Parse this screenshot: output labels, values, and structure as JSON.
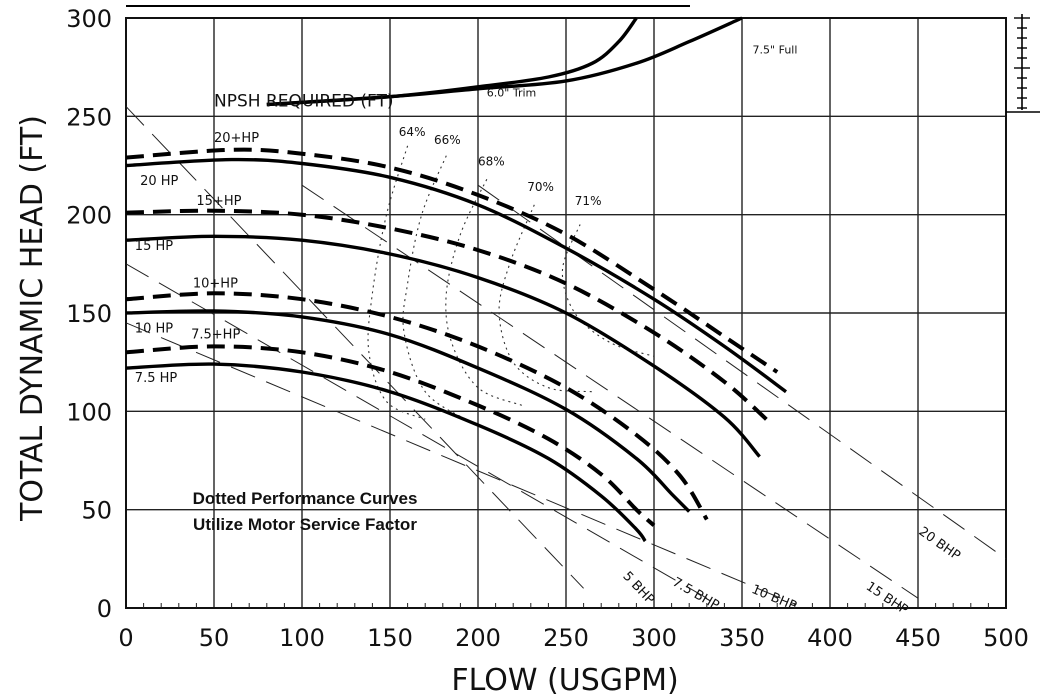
{
  "chart_data": {
    "type": "line",
    "title": "",
    "xlabel": "FLOW (USGPM)",
    "ylabel": "TOTAL DYNAMIC HEAD (FT)",
    "xlim": [
      0,
      500
    ],
    "ylim": [
      0,
      300
    ],
    "x_ticks": [
      0,
      50,
      100,
      150,
      200,
      250,
      300,
      350,
      400,
      450,
      500
    ],
    "y_ticks": [
      0,
      50,
      100,
      150,
      200,
      250,
      300
    ],
    "grid": true,
    "note_lines": [
      "Dotted Performance Curves",
      "Utilize Motor Service Factor"
    ],
    "series": [
      {
        "name": "20+HP",
        "style": "dashed",
        "label_at": [
          50,
          237
        ],
        "points": [
          [
            0,
            229
          ],
          [
            60,
            233
          ],
          [
            100,
            231
          ],
          [
            150,
            224
          ],
          [
            200,
            210
          ],
          [
            250,
            190
          ],
          [
            300,
            162
          ],
          [
            340,
            138
          ],
          [
            370,
            120
          ]
        ]
      },
      {
        "name": "20 HP",
        "style": "solid",
        "label_at": [
          8,
          215
        ],
        "points": [
          [
            0,
            225
          ],
          [
            60,
            228
          ],
          [
            100,
            226
          ],
          [
            150,
            219
          ],
          [
            200,
            205
          ],
          [
            250,
            183
          ],
          [
            300,
            157
          ],
          [
            340,
            133
          ],
          [
            375,
            110
          ]
        ]
      },
      {
        "name": "15+HP",
        "style": "dashed",
        "label_at": [
          40,
          205
        ],
        "points": [
          [
            0,
            201
          ],
          [
            50,
            202
          ],
          [
            100,
            200
          ],
          [
            150,
            193
          ],
          [
            200,
            182
          ],
          [
            250,
            165
          ],
          [
            300,
            140
          ],
          [
            340,
            115
          ],
          [
            365,
            95
          ]
        ]
      },
      {
        "name": "15 HP",
        "style": "solid",
        "label_at": [
          5,
          182
        ],
        "points": [
          [
            0,
            187
          ],
          [
            50,
            189
          ],
          [
            100,
            187
          ],
          [
            150,
            180
          ],
          [
            200,
            168
          ],
          [
            250,
            150
          ],
          [
            300,
            123
          ],
          [
            340,
            97
          ],
          [
            360,
            77
          ]
        ]
      },
      {
        "name": "10+HP",
        "style": "dashed",
        "label_at": [
          38,
          163
        ],
        "points": [
          [
            0,
            157
          ],
          [
            50,
            160
          ],
          [
            100,
            157
          ],
          [
            150,
            148
          ],
          [
            200,
            133
          ],
          [
            250,
            112
          ],
          [
            290,
            88
          ],
          [
            315,
            67
          ],
          [
            330,
            45
          ]
        ]
      },
      {
        "name": "10 HP",
        "style": "solid",
        "label_at": [
          5,
          140
        ],
        "points": [
          [
            0,
            150
          ],
          [
            50,
            151
          ],
          [
            100,
            148
          ],
          [
            150,
            139
          ],
          [
            200,
            122
          ],
          [
            250,
            101
          ],
          [
            290,
            76
          ],
          [
            310,
            58
          ],
          [
            320,
            49
          ]
        ]
      },
      {
        "name": "7.5+HP",
        "style": "dashed",
        "label_at": [
          37,
          137
        ],
        "points": [
          [
            0,
            130
          ],
          [
            50,
            133
          ],
          [
            100,
            130
          ],
          [
            150,
            120
          ],
          [
            200,
            103
          ],
          [
            240,
            86
          ],
          [
            270,
            68
          ],
          [
            290,
            50
          ],
          [
            300,
            42
          ]
        ]
      },
      {
        "name": "7.5 HP",
        "style": "solid",
        "label_at": [
          5,
          115
        ],
        "points": [
          [
            0,
            122
          ],
          [
            50,
            124
          ],
          [
            100,
            120
          ],
          [
            150,
            110
          ],
          [
            200,
            93
          ],
          [
            240,
            76
          ],
          [
            270,
            57
          ],
          [
            290,
            40
          ],
          [
            295,
            34
          ]
        ]
      }
    ],
    "npsh_required": {
      "label": "NPSH REQUIRED (FT)",
      "label_at": [
        50,
        255
      ],
      "curves": [
        {
          "name": "6.0\" Trim",
          "label_at": [
            205,
            260
          ],
          "points": [
            [
              80,
              256
            ],
            [
              150,
              260
            ],
            [
              200,
              265
            ],
            [
              240,
              270
            ],
            [
              265,
              277
            ],
            [
              280,
              288
            ],
            [
              290,
              300
            ]
          ]
        },
        {
          "name": "7.5\" Full",
          "label_at": [
            356,
            282
          ],
          "points": [
            [
              80,
              256
            ],
            [
              150,
              260
            ],
            [
              200,
              264
            ],
            [
              250,
              268
            ],
            [
              290,
              277
            ],
            [
              320,
              288
            ],
            [
              350,
              300
            ]
          ]
        }
      ]
    },
    "efficiency_curves": [
      {
        "label": "64%",
        "label_at": [
          155,
          240
        ],
        "points": [
          [
            160,
            235
          ],
          [
            148,
            200
          ],
          [
            140,
            160
          ],
          [
            138,
            130
          ],
          [
            148,
            105
          ],
          [
            170,
            96
          ]
        ]
      },
      {
        "label": "66%",
        "label_at": [
          175,
          236
        ],
        "points": [
          [
            182,
            230
          ],
          [
            168,
            200
          ],
          [
            160,
            165
          ],
          [
            158,
            140
          ],
          [
            170,
            110
          ],
          [
            195,
            95
          ]
        ]
      },
      {
        "label": "68%",
        "label_at": [
          200,
          225
        ],
        "points": [
          [
            205,
            218
          ],
          [
            190,
            190
          ],
          [
            182,
            160
          ],
          [
            185,
            135
          ],
          [
            200,
            112
          ],
          [
            225,
            103
          ]
        ]
      },
      {
        "label": "70%",
        "label_at": [
          228,
          212
        ],
        "points": [
          [
            232,
            205
          ],
          [
            218,
            175
          ],
          [
            212,
            150
          ],
          [
            220,
            125
          ],
          [
            240,
            112
          ],
          [
            265,
            110
          ]
        ]
      },
      {
        "label": "71%",
        "label_at": [
          255,
          205
        ],
        "points": [
          [
            258,
            195
          ],
          [
            248,
            172
          ],
          [
            255,
            150
          ],
          [
            275,
            135
          ],
          [
            300,
            128
          ]
        ]
      }
    ],
    "bhp_lines": [
      {
        "label": "5 BHP",
        "label_at": [
          282,
          16
        ],
        "points": [
          [
            0,
            255
          ],
          [
            260,
            10
          ]
        ]
      },
      {
        "label": "7.5 BHP",
        "label_at": [
          310,
          12
        ],
        "points": [
          [
            0,
            175
          ],
          [
            330,
            5
          ]
        ]
      },
      {
        "label": "10 BHP",
        "label_at": [
          355,
          8
        ],
        "points": [
          [
            0,
            145
          ],
          [
            380,
            2
          ]
        ]
      },
      {
        "label": "15 BHP",
        "label_at": [
          420,
          10
        ],
        "points": [
          [
            100,
            215
          ],
          [
            450,
            5
          ]
        ]
      },
      {
        "label": "20 BHP",
        "label_at": [
          450,
          38
        ],
        "points": [
          [
            200,
            215
          ],
          [
            500,
            25
          ]
        ]
      }
    ]
  }
}
